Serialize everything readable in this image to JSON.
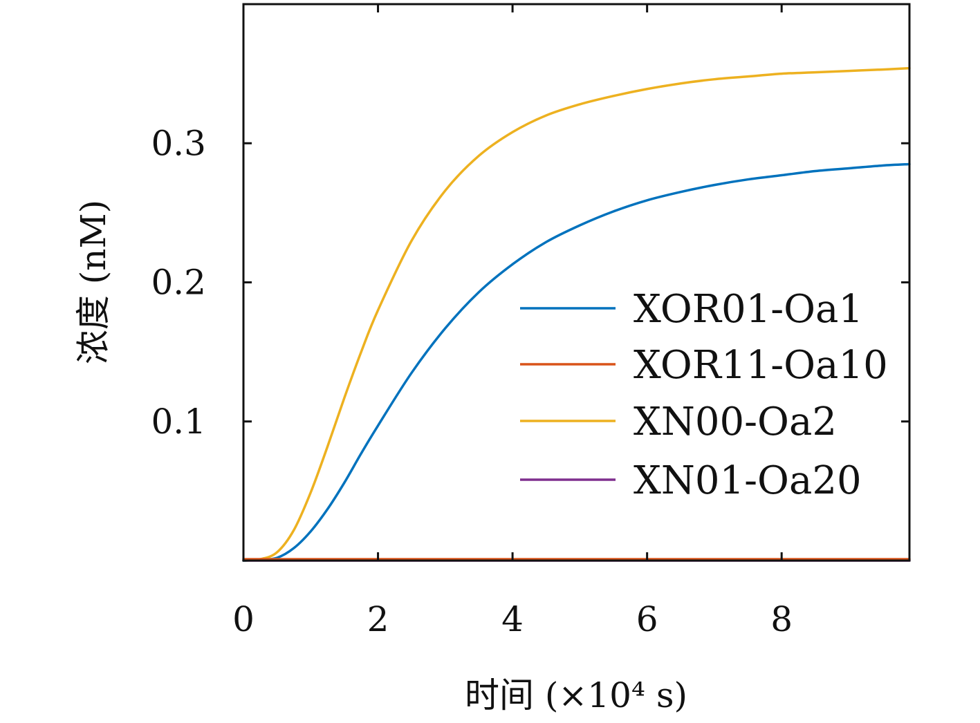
{
  "chart_data": {
    "type": "line",
    "title": "",
    "xlabel": "时间 (×10⁴ s)",
    "ylabel": "浓度 (nM)",
    "xlim": [
      0,
      9.9
    ],
    "ylim": [
      0,
      0.4
    ],
    "xticks": [
      0,
      2,
      4,
      6,
      8
    ],
    "xtick_labels": [
      "0",
      "2",
      "4",
      "6",
      "8"
    ],
    "yticks": [
      0.1,
      0.2,
      0.3
    ],
    "ytick_labels": [
      "0.1",
      "0.2",
      "0.3"
    ],
    "grid": false,
    "legend_position": "center-right",
    "x": [
      0,
      0.25,
      0.5,
      0.75,
      1.0,
      1.25,
      1.5,
      1.75,
      2.0,
      2.5,
      3.0,
      3.5,
      4.0,
      4.5,
      5.0,
      5.5,
      6.0,
      6.5,
      7.0,
      7.5,
      8.0,
      8.5,
      9.0,
      9.5,
      9.9
    ],
    "series": [
      {
        "name": "XOR01-Oa1",
        "color": "#0072BD",
        "values": [
          0,
          0.0005,
          0.002,
          0.009,
          0.021,
          0.037,
          0.056,
          0.077,
          0.097,
          0.135,
          0.167,
          0.193,
          0.213,
          0.229,
          0.241,
          0.251,
          0.259,
          0.265,
          0.27,
          0.274,
          0.277,
          0.28,
          0.282,
          0.284,
          0.285
        ]
      },
      {
        "name": "XOR11-Oa10",
        "color": "#D95319",
        "values": [
          0.001,
          0.001,
          0.001,
          0.001,
          0.001,
          0.001,
          0.001,
          0.001,
          0.001,
          0.001,
          0.001,
          0.001,
          0.001,
          0.001,
          0.001,
          0.001,
          0.001,
          0.001,
          0.001,
          0.001,
          0.001,
          0.001,
          0.001,
          0.001,
          0.001
        ]
      },
      {
        "name": "XN00-Oa2",
        "color": "#EDB120",
        "values": [
          0,
          0.001,
          0.006,
          0.022,
          0.049,
          0.082,
          0.117,
          0.15,
          0.18,
          0.23,
          0.266,
          0.291,
          0.308,
          0.32,
          0.328,
          0.334,
          0.339,
          0.343,
          0.346,
          0.348,
          0.35,
          0.351,
          0.352,
          0.353,
          0.354
        ]
      },
      {
        "name": "XN01-Oa20",
        "color": "#7E2F8E",
        "values": [
          0,
          0,
          0,
          0,
          0,
          0,
          0,
          0,
          0,
          0,
          0,
          0,
          0,
          0,
          0,
          0,
          0,
          0,
          0,
          0,
          0,
          0,
          0,
          0,
          0
        ]
      }
    ]
  }
}
